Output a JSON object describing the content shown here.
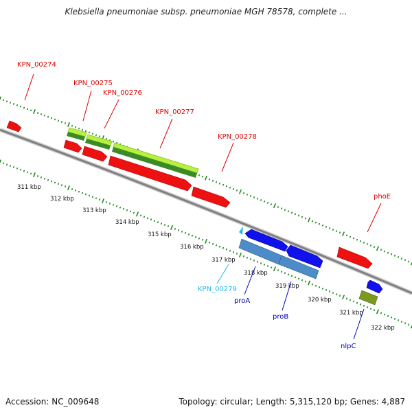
{
  "title": "Klebsiella pneumoniae subsp. pneumoniae MGH 78578, complete ...",
  "footer": {
    "accession": "Accession: NC_009648",
    "summary": "Topology: circular; Length: 5,315,120 bp; Genes: 4,887"
  },
  "scale_labels": [
    "311 kbp",
    "312 kbp",
    "313 kbp",
    "314 kbp",
    "315 kbp",
    "316 kbp",
    "317 kbp",
    "318 kbp",
    "319 kbp",
    "320 kbp",
    "321 kbp",
    "322 kbp"
  ],
  "colors": {
    "red_gene": "#ee1111",
    "blue_gene": "#1111ee",
    "steel_gene": "#4d8cc8",
    "light_green": "#b8f040",
    "dark_green": "#3a8a28",
    "olive": "#7a9a20",
    "tick_green": "#1f8a1f",
    "backbone": "#888888",
    "label_red": "#dd0000",
    "label_blue": "#0000bb",
    "label_cyan": "#22b8e8"
  },
  "genes": [
    {
      "name": "KPN_00274",
      "color": "red"
    },
    {
      "name": "KPN_00275",
      "color": "red"
    },
    {
      "name": "KPN_00276",
      "color": "red"
    },
    {
      "name": "KPN_00277",
      "color": "red"
    },
    {
      "name": "KPN_00278",
      "color": "red"
    },
    {
      "name": "phoE",
      "color": "red"
    },
    {
      "name": "KPN_00279",
      "color": "cyan"
    },
    {
      "name": "proA",
      "color": "blue"
    },
    {
      "name": "proB",
      "color": "blue"
    },
    {
      "name": "nlpC",
      "color": "blue"
    }
  ]
}
